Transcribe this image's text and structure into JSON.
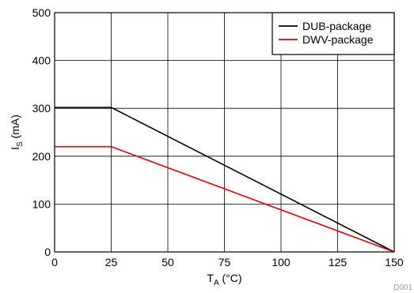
{
  "chart_data": {
    "type": "line",
    "title": "",
    "xlabel": "T",
    "xlabel_sub": "A",
    "xlabel_unit": " (°C)",
    "ylabel": "I",
    "ylabel_sub": "S",
    "ylabel_unit": " (mA)",
    "xlim": [
      0,
      150
    ],
    "ylim": [
      0,
      500
    ],
    "xticks": [
      0,
      25,
      50,
      75,
      100,
      125,
      150
    ],
    "yticks": [
      0,
      100,
      200,
      300,
      400,
      500
    ],
    "grid": true,
    "legend_position": "top-right",
    "series": [
      {
        "name": "DUB-package",
        "color": "#000000",
        "x": [
          0,
          25,
          150
        ],
        "y": [
          302,
          302,
          0
        ]
      },
      {
        "name": "DWV-package",
        "color": "#e00000",
        "x": [
          0,
          25,
          150
        ],
        "y": [
          220,
          220,
          0
        ]
      }
    ],
    "figure_id": "D001"
  }
}
